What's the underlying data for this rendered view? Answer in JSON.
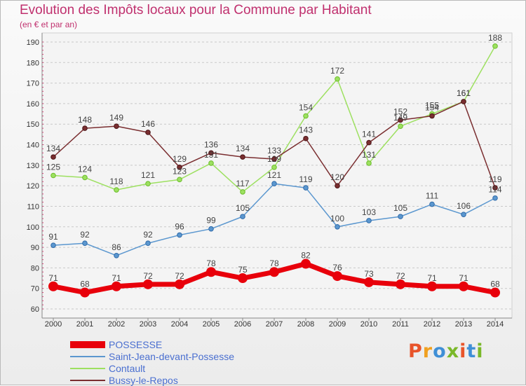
{
  "title": "Evolution des Impôts locaux pour la Commune par Habitant",
  "subtitle": "(en € et par an)",
  "logo": {
    "text": "Proxiti",
    "letter_colors": [
      "#e8542a",
      "#f0a020",
      "#3f8fd6",
      "#7ab829",
      "#e8542a",
      "#3f8fd6",
      "#7ab829"
    ]
  },
  "chart_data": {
    "type": "line",
    "title": "Evolution des Impôts locaux pour la Commune par Habitant",
    "subtitle": "(en € et par an)",
    "xlabel": "",
    "ylabel": "",
    "x": [
      "2000",
      "2001",
      "2002",
      "2003",
      "2004",
      "2005",
      "2006",
      "2007",
      "2008",
      "2009",
      "2010",
      "2011",
      "2012",
      "2013",
      "2014"
    ],
    "ylim": [
      60,
      190
    ],
    "yticks": [
      60,
      70,
      80,
      90,
      100,
      110,
      120,
      130,
      140,
      150,
      160,
      170,
      180,
      190
    ],
    "grid": "horizontal dashed",
    "legend_position": "bottom-left",
    "series": [
      {
        "name": "POSSESSE",
        "color": "#e8000b",
        "emphasis": true,
        "values": [
          71,
          68,
          71,
          72,
          72,
          78,
          75,
          78,
          82,
          76,
          73,
          72,
          71,
          71,
          68
        ]
      },
      {
        "name": "Saint-Jean-devant-Possesse",
        "color": "#5b97cf",
        "emphasis": false,
        "values": [
          91,
          92,
          86,
          92,
          96,
          99,
          105,
          121,
          119,
          100,
          103,
          105,
          111,
          106,
          114
        ]
      },
      {
        "name": "Contault",
        "color": "#9de060",
        "emphasis": false,
        "values": [
          125,
          124,
          118,
          121,
          123,
          131,
          117,
          129,
          154,
          172,
          131,
          149,
          155,
          161,
          188
        ]
      },
      {
        "name": "Bussy-le-Repos",
        "color": "#7a2e30",
        "emphasis": false,
        "values": [
          134,
          148,
          149,
          146,
          129,
          136,
          134,
          133,
          143,
          120,
          141,
          152,
          154,
          161,
          119
        ]
      }
    ]
  }
}
